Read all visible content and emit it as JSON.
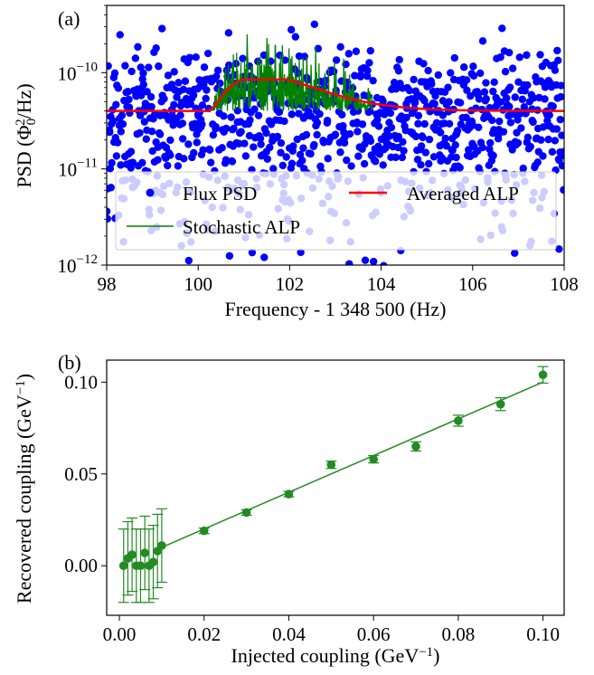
{
  "chart_data": [
    {
      "panel": "(a)",
      "type": "scatter",
      "title": "",
      "xlabel": "Frequency - 1 348 500 (Hz)",
      "ylabel": "PSD (Φ0²/Hz)",
      "ylabel_parts": {
        "prefix": "PSD (Φ",
        "sub": "0",
        "sup": "2",
        "suffix": "/Hz)"
      },
      "xlim": [
        98,
        108
      ],
      "ylim": [
        1e-12,
        5e-10
      ],
      "yscale": "log",
      "xticks": [
        98,
        100,
        102,
        104,
        106,
        108
      ],
      "yticks": [
        {
          "value": 1e-12,
          "base": "10",
          "exp": "−12"
        },
        {
          "value": 1e-11,
          "base": "10",
          "exp": "−11"
        },
        {
          "value": 1e-10,
          "base": "10",
          "exp": "−10"
        }
      ],
      "grid": false,
      "legend_position": "bottom",
      "legend": [
        {
          "label": "Flux PSD",
          "marker": "dot",
          "color": "#0000ff"
        },
        {
          "label": "Averaged ALP",
          "marker": "line",
          "color": "#ff0000"
        },
        {
          "label": "Stochastic ALP",
          "marker": "line",
          "color": "#008000"
        }
      ],
      "series": [
        {
          "name": "Flux PSD",
          "kind": "scatter",
          "color": "#0000ff",
          "x_range": [
            98,
            108
          ],
          "n_points": 1000,
          "distribution": "exponential",
          "mean": 4e-11,
          "seed": 7
        },
        {
          "name": "Averaged ALP",
          "kind": "line",
          "color": "#ff0000",
          "baseline": 4e-11,
          "peak_value": 8.5e-11,
          "peak_x": 100.95,
          "onset_x": 100.2,
          "decay_end_x": 103.8
        },
        {
          "name": "Stochastic ALP",
          "kind": "line",
          "color": "#008000",
          "x_range": [
            100.2,
            103.8
          ],
          "max_value": 2.5e-10,
          "seed": 11
        }
      ]
    },
    {
      "panel": "(b)",
      "type": "scatter",
      "title": "",
      "xlabel": "Injected coupling (GeV⁻¹)",
      "xlabel_parts": {
        "prefix": "Injected coupling (GeV",
        "sup": "−1",
        "suffix": ")"
      },
      "ylabel": "Recovered coupling (GeV⁻¹)",
      "ylabel_parts": {
        "prefix": "Recovered coupling (GeV",
        "sup": "−1",
        "suffix": ")"
      },
      "xlim": [
        -0.003,
        0.105
      ],
      "ylim": [
        -0.027,
        0.112
      ],
      "xticks": [
        "0.00",
        "0.02",
        "0.04",
        "0.06",
        "0.08",
        "0.10"
      ],
      "yticks": [
        "0.00",
        "0.05",
        "0.10"
      ],
      "grid": false,
      "color": "#228b22",
      "fit_line": {
        "x": [
          0.01,
          0.1
        ],
        "y": [
          0.01,
          0.1
        ]
      },
      "points": [
        {
          "x": 0.001,
          "y": 0.0,
          "err": 0.02
        },
        {
          "x": 0.002,
          "y": 0.004,
          "err": 0.02
        },
        {
          "x": 0.003,
          "y": 0.006,
          "err": 0.02
        },
        {
          "x": 0.004,
          "y": 0.0,
          "err": 0.02
        },
        {
          "x": 0.005,
          "y": 0.0,
          "err": 0.02
        },
        {
          "x": 0.006,
          "y": 0.007,
          "err": 0.02
        },
        {
          "x": 0.007,
          "y": 0.0,
          "err": 0.02
        },
        {
          "x": 0.008,
          "y": 0.002,
          "err": 0.02
        },
        {
          "x": 0.009,
          "y": 0.008,
          "err": 0.02
        },
        {
          "x": 0.01,
          "y": 0.011,
          "err": 0.02
        },
        {
          "x": 0.02,
          "y": 0.019,
          "err": 0.0015
        },
        {
          "x": 0.03,
          "y": 0.029,
          "err": 0.0015
        },
        {
          "x": 0.04,
          "y": 0.039,
          "err": 0.0015
        },
        {
          "x": 0.05,
          "y": 0.055,
          "err": 0.002
        },
        {
          "x": 0.06,
          "y": 0.058,
          "err": 0.002
        },
        {
          "x": 0.07,
          "y": 0.065,
          "err": 0.0025
        },
        {
          "x": 0.08,
          "y": 0.079,
          "err": 0.003
        },
        {
          "x": 0.09,
          "y": 0.088,
          "err": 0.0035
        },
        {
          "x": 0.1,
          "y": 0.104,
          "err": 0.0045
        }
      ]
    }
  ]
}
